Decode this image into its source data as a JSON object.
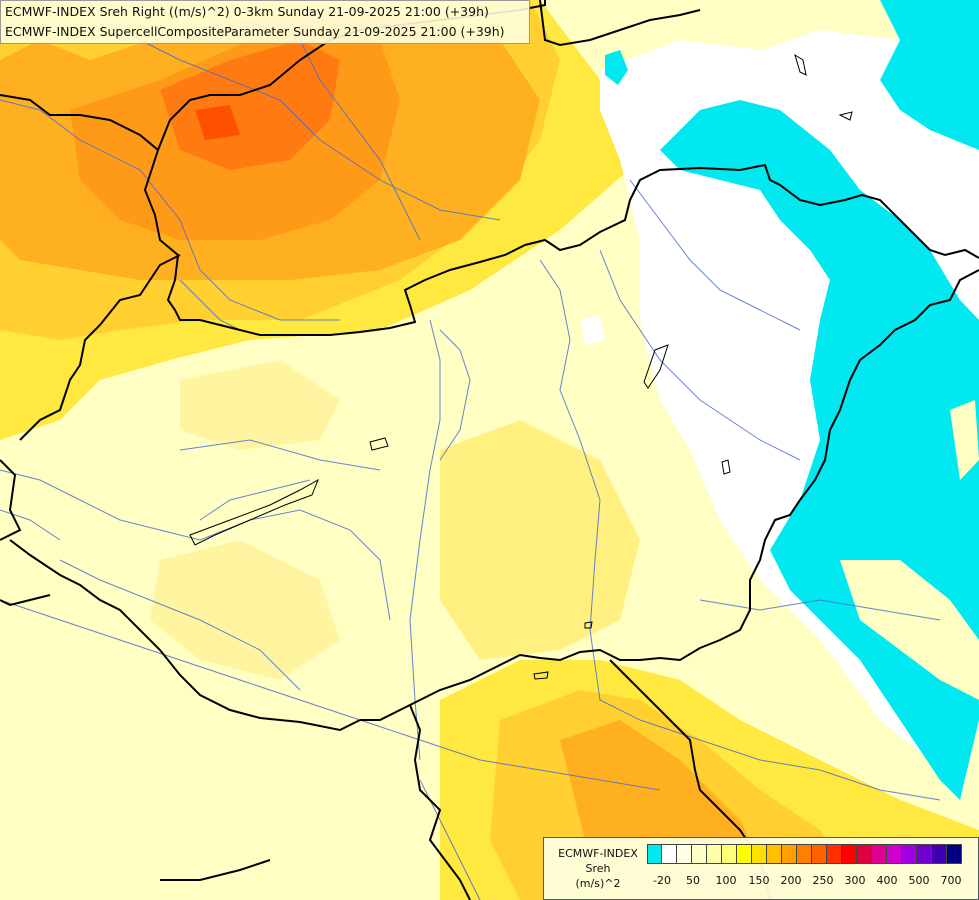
{
  "titles": {
    "line1": "ECMWF-INDEX Sreh Right ((m/s)^2) 0-3km Sunday 21-09-2025 21:00 (+39h)",
    "line2": "ECMWF-INDEX SupercellCompositeParameter Sunday 21-09-2025 21:00 (+39h)"
  },
  "legend": {
    "source": "ECMWF-INDEX",
    "parameter": "Sreh",
    "unit": "(m/s)^2",
    "colors": [
      "#00e8f0",
      "#ffffff",
      "#ffffe6",
      "#ffffc8",
      "#ffffaa",
      "#ffff78",
      "#ffff00",
      "#ffe000",
      "#ffc000",
      "#ffa000",
      "#ff8000",
      "#ff6000",
      "#ff3000",
      "#ff0000",
      "#e00040",
      "#e00090",
      "#d000d0",
      "#a000e0",
      "#7000d0",
      "#4000b0",
      "#000080"
    ],
    "ticks": [
      "-20",
      "50",
      "100",
      "150",
      "200",
      "250",
      "300",
      "400",
      "500",
      "700"
    ]
  }
}
